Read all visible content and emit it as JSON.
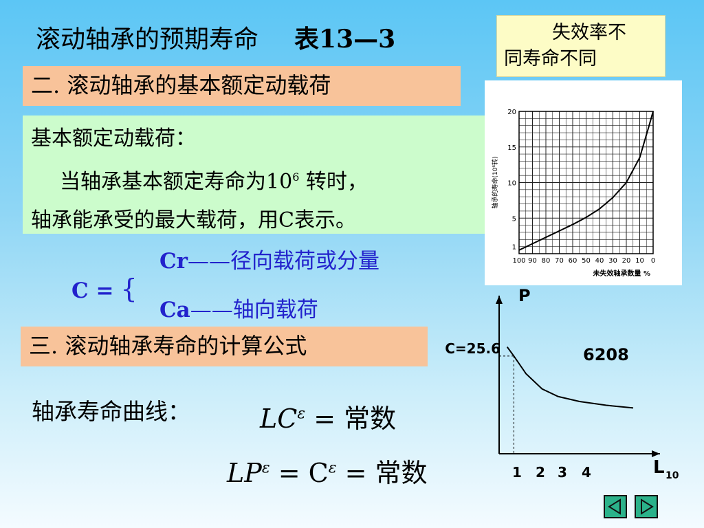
{
  "title": {
    "main": "滚动轴承的预期寿命",
    "table_ref": "表13—3"
  },
  "note": {
    "line1": "失效率不",
    "line2": "同寿命不同"
  },
  "section2": {
    "heading": "二. 滚动轴承的基本额定动载荷"
  },
  "definition": {
    "label": "基本额定动载荷：",
    "line2_pre": "当轴承基本额定寿命为10",
    "line2_sup": "6",
    "line2_post": " 转时，",
    "line3": "轴承能承受的最大载荷，用C表示。"
  },
  "c_def": {
    "c_eq": "C =",
    "brace": "{",
    "cr_sym": "Cr",
    "cr_dash": "——",
    "cr_text": "径向载荷或分量",
    "ca_sym": "Ca",
    "ca_dash": "——",
    "ca_text": "轴向载荷"
  },
  "section3": {
    "heading": "三. 滚动轴承寿命的计算公式"
  },
  "life_curve": {
    "label": "轴承寿命曲线：",
    "f1_lhs": "LC",
    "f1_exp": "ε",
    "f1_rhs": " = 常数",
    "f2_lhs": "LP",
    "f2_exp": "ε",
    "f2_mid": " = C",
    "f2_exp2": "ε",
    "f2_rhs": " = 常数"
  },
  "chart_data": [
    {
      "type": "line",
      "title": "",
      "ylabel": "轴承的寿命(10⁶转)",
      "xlabel": "未失效轴承数量 %",
      "x": [
        100,
        90,
        80,
        70,
        60,
        50,
        40,
        30,
        20,
        10,
        0
      ],
      "x_tick_labels": [
        "100",
        "90",
        "80",
        "70",
        "60",
        "50",
        "40",
        "30",
        "20",
        "10",
        "0"
      ],
      "y_ticks": [
        1,
        5,
        10,
        15,
        20
      ],
      "xlim": [
        100,
        0
      ],
      "ylim": [
        0,
        20
      ],
      "grid": true,
      "series": [
        {
          "points": [
            [
              100,
              0.5
            ],
            [
              90,
              1.4
            ],
            [
              80,
              2.3
            ],
            [
              70,
              3.2
            ],
            [
              60,
              4.1
            ],
            [
              50,
              5.1
            ],
            [
              40,
              6.3
            ],
            [
              30,
              7.9
            ],
            [
              20,
              10.0
            ],
            [
              10,
              13.5
            ],
            [
              3,
              18.0
            ],
            [
              0,
              20.0
            ]
          ]
        }
      ]
    },
    {
      "type": "line",
      "title": "",
      "ylabel": "P",
      "xlabel": "L",
      "xlabel_sub": "10",
      "x_tick_labels": [
        "1",
        "2",
        "3",
        "4"
      ],
      "annotation": "C=25.6",
      "model_label": "6208",
      "xlim": [
        0,
        6
      ],
      "ylim": [
        0,
        40
      ],
      "series": [
        {
          "points": [
            [
              0.3,
              28
            ],
            [
              0.55,
              25.6
            ],
            [
              1,
              21
            ],
            [
              1.6,
              17
            ],
            [
              2.2,
              15
            ],
            [
              3,
              13.7
            ],
            [
              4,
              12.7
            ],
            [
              5,
              12
            ]
          ]
        }
      ]
    }
  ],
  "nav": {
    "prev_icon": "triangle-left-icon",
    "next_icon": "triangle-right-icon",
    "button_color": "#2bb28a"
  }
}
